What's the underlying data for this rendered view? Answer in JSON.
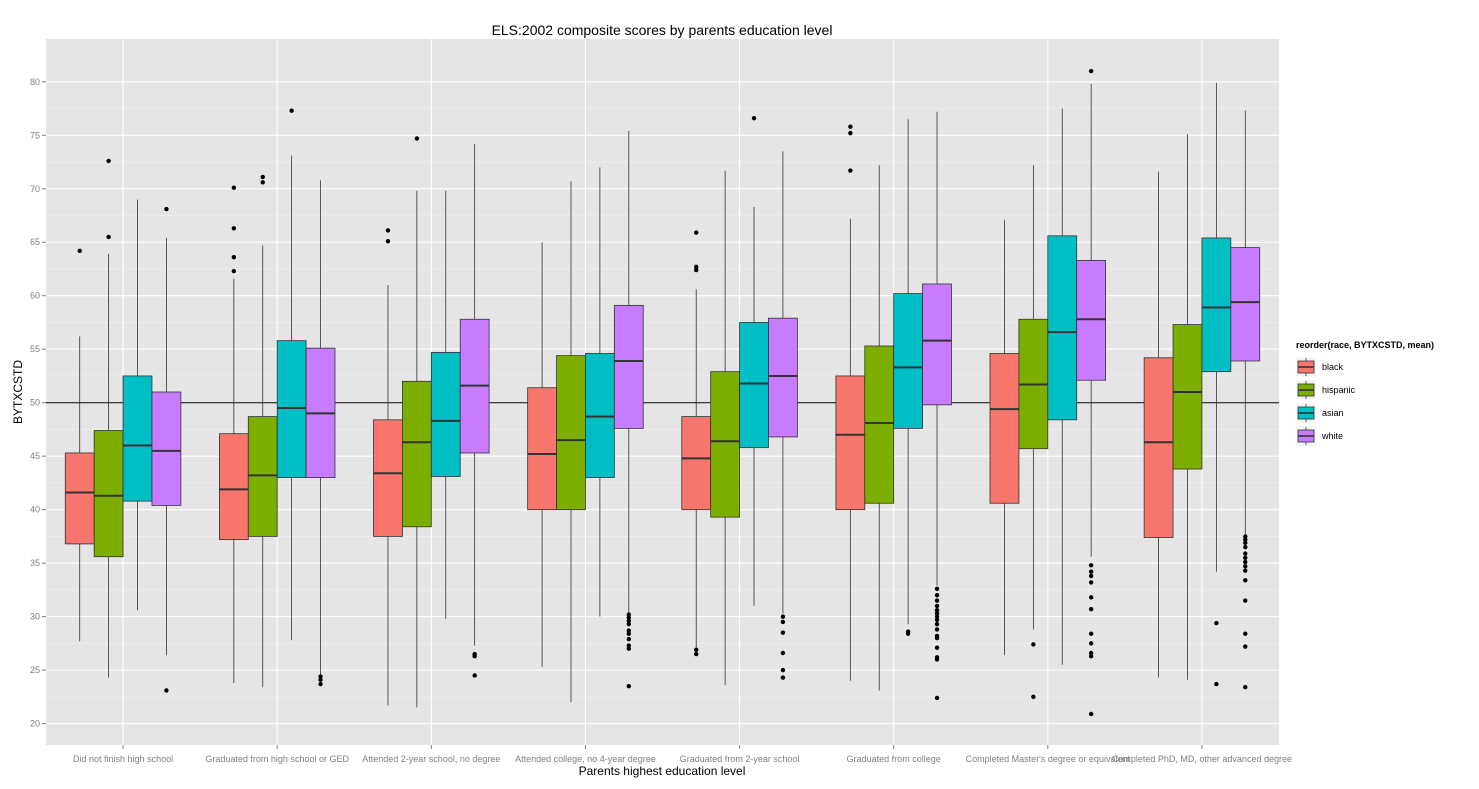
{
  "chart_data": {
    "type": "boxplot",
    "title": "ELS:2002 composite scores by parents education level",
    "xlabel": "Parents highest education level",
    "ylabel": "BYTXCSTD",
    "ylim": [
      18,
      84
    ],
    "yticks": [
      20,
      25,
      30,
      35,
      40,
      45,
      50,
      55,
      60,
      65,
      70,
      75,
      80
    ],
    "hline": 50,
    "grid": true,
    "categories": [
      "Did not finish high school",
      "Graduated from high school or GED",
      "Attended 2-year school, no degree",
      "Attended college, no 4-year degree",
      "Graduated from 2-year school",
      "Graduated from college",
      "Completed Master's degree or equivalent",
      "Completed PhD, MD, other advanced degree"
    ],
    "legend": {
      "title": "reorder(race, BYTXCSTD, mean)",
      "position": "right"
    },
    "series": [
      {
        "name": "black",
        "color": "#F8766D",
        "boxes": [
          {
            "whisker_low": 27.7,
            "q1": 36.8,
            "median": 41.6,
            "q3": 45.3,
            "whisker_high": 56.2,
            "outliers": [
              64.2
            ]
          },
          {
            "whisker_low": 23.8,
            "q1": 37.2,
            "median": 41.9,
            "q3": 47.1,
            "whisker_high": 61.6,
            "outliers": [
              62.3,
              63.6,
              66.3,
              70.1
            ]
          },
          {
            "whisker_low": 21.7,
            "q1": 37.5,
            "median": 43.4,
            "q3": 48.4,
            "whisker_high": 61.0,
            "outliers": [
              65.1,
              66.1
            ]
          },
          {
            "whisker_low": 25.3,
            "q1": 40.0,
            "median": 45.2,
            "q3": 51.4,
            "whisker_high": 65.0,
            "outliers": []
          },
          {
            "whisker_low": 27.0,
            "q1": 40.0,
            "median": 44.8,
            "q3": 48.7,
            "whisker_high": 60.6,
            "outliers": [
              26.5,
              26.9,
              62.4,
              62.7,
              65.9
            ]
          },
          {
            "whisker_low": 24.0,
            "q1": 40.0,
            "median": 47.0,
            "q3": 52.5,
            "whisker_high": 67.2,
            "outliers": [
              71.7,
              75.2,
              75.8
            ]
          },
          {
            "whisker_low": 26.4,
            "q1": 40.6,
            "median": 49.4,
            "q3": 54.6,
            "whisker_high": 67.1,
            "outliers": []
          },
          {
            "whisker_low": 24.3,
            "q1": 37.4,
            "median": 46.3,
            "q3": 54.2,
            "whisker_high": 71.6,
            "outliers": []
          }
        ]
      },
      {
        "name": "hispanic",
        "color": "#7CAE00",
        "boxes": [
          {
            "whisker_low": 24.3,
            "q1": 35.6,
            "median": 41.3,
            "q3": 47.4,
            "whisker_high": 63.9,
            "outliers": [
              65.5,
              72.6
            ]
          },
          {
            "whisker_low": 23.4,
            "q1": 37.5,
            "median": 43.2,
            "q3": 48.7,
            "whisker_high": 64.7,
            "outliers": [
              70.6,
              71.1
            ]
          },
          {
            "whisker_low": 21.5,
            "q1": 38.4,
            "median": 46.3,
            "q3": 52.0,
            "whisker_high": 69.8,
            "outliers": [
              74.7
            ]
          },
          {
            "whisker_low": 22.0,
            "q1": 40.0,
            "median": 46.5,
            "q3": 54.4,
            "whisker_high": 70.7,
            "outliers": []
          },
          {
            "whisker_low": 23.6,
            "q1": 39.3,
            "median": 46.4,
            "q3": 52.9,
            "whisker_high": 71.7,
            "outliers": []
          },
          {
            "whisker_low": 23.1,
            "q1": 40.6,
            "median": 48.1,
            "q3": 55.3,
            "whisker_high": 72.2,
            "outliers": []
          },
          {
            "whisker_low": 28.8,
            "q1": 45.7,
            "median": 51.7,
            "q3": 57.8,
            "whisker_high": 72.2,
            "outliers": [
              22.5,
              27.4
            ]
          },
          {
            "whisker_low": 24.1,
            "q1": 43.8,
            "median": 51.0,
            "q3": 57.3,
            "whisker_high": 75.1,
            "outliers": []
          }
        ]
      },
      {
        "name": "asian",
        "color": "#00BFC4",
        "boxes": [
          {
            "whisker_low": 30.6,
            "q1": 40.8,
            "median": 46.0,
            "q3": 52.5,
            "whisker_high": 69.0,
            "outliers": []
          },
          {
            "whisker_low": 27.8,
            "q1": 43.0,
            "median": 49.5,
            "q3": 55.8,
            "whisker_high": 73.1,
            "outliers": [
              77.3
            ]
          },
          {
            "whisker_low": 29.8,
            "q1": 43.1,
            "median": 48.3,
            "q3": 54.7,
            "whisker_high": 69.8,
            "outliers": []
          },
          {
            "whisker_low": 30.0,
            "q1": 43.0,
            "median": 48.7,
            "q3": 54.6,
            "whisker_high": 72.0,
            "outliers": []
          },
          {
            "whisker_low": 31.0,
            "q1": 45.8,
            "median": 51.8,
            "q3": 57.5,
            "whisker_high": 68.3,
            "outliers": [
              76.6
            ]
          },
          {
            "whisker_low": 29.3,
            "q1": 47.6,
            "median": 53.3,
            "q3": 60.2,
            "whisker_high": 76.5,
            "outliers": [
              28.4,
              28.6
            ]
          },
          {
            "whisker_low": 25.5,
            "q1": 48.4,
            "median": 56.6,
            "q3": 65.6,
            "whisker_high": 77.5,
            "outliers": []
          },
          {
            "whisker_low": 34.2,
            "q1": 52.9,
            "median": 58.9,
            "q3": 65.4,
            "whisker_high": 79.9,
            "outliers": [
              23.7,
              29.4
            ]
          }
        ]
      },
      {
        "name": "white",
        "color": "#C77CFF",
        "boxes": [
          {
            "whisker_low": 26.4,
            "q1": 40.4,
            "median": 45.5,
            "q3": 51.0,
            "whisker_high": 65.4,
            "outliers": [
              23.1,
              68.1
            ]
          },
          {
            "whisker_low": 24.5,
            "q1": 43.0,
            "median": 49.0,
            "q3": 55.1,
            "whisker_high": 70.8,
            "outliers": [
              23.7,
              24.1,
              24.4
            ]
          },
          {
            "whisker_low": 27.3,
            "q1": 45.3,
            "median": 51.6,
            "q3": 57.8,
            "whisker_high": 74.2,
            "outliers": [
              24.5,
              26.3,
              26.5
            ]
          },
          {
            "whisker_low": 30.4,
            "q1": 47.6,
            "median": 53.9,
            "q3": 59.1,
            "whisker_high": 75.4,
            "outliers": [
              23.5,
              27.0,
              27.3,
              27.9,
              28.4,
              28.7,
              29.3,
              29.6,
              29.9,
              30.2
            ]
          },
          {
            "whisker_low": 30.3,
            "q1": 46.8,
            "median": 52.5,
            "q3": 57.9,
            "whisker_high": 73.5,
            "outliers": [
              24.3,
              25.0,
              26.6,
              28.5,
              29.5,
              30.0
            ]
          },
          {
            "whisker_low": 32.9,
            "q1": 49.8,
            "median": 55.8,
            "q3": 61.1,
            "whisker_high": 77.2,
            "outliers": [
              22.4,
              26.0,
              26.2,
              27.1,
              28.0,
              28.2,
              28.8,
              29.3,
              29.7,
              30.0,
              30.3,
              30.6,
              31.0,
              31.5,
              32.0,
              32.6
            ]
          },
          {
            "whisker_low": 35.6,
            "q1": 52.1,
            "median": 57.8,
            "q3": 63.3,
            "whisker_high": 79.8,
            "outliers": [
              20.9,
              26.3,
              26.6,
              27.5,
              28.4,
              30.7,
              31.8,
              33.2,
              33.8,
              34.2,
              34.8,
              81.0
            ]
          },
          {
            "whisker_low": 37.7,
            "q1": 53.9,
            "median": 59.4,
            "q3": 64.5,
            "whisker_high": 77.3,
            "outliers": [
              23.4,
              27.2,
              28.4,
              31.5,
              33.4,
              34.3,
              34.7,
              35.1,
              35.5,
              35.9,
              36.5,
              36.9,
              37.2,
              37.5
            ]
          }
        ]
      }
    ]
  }
}
